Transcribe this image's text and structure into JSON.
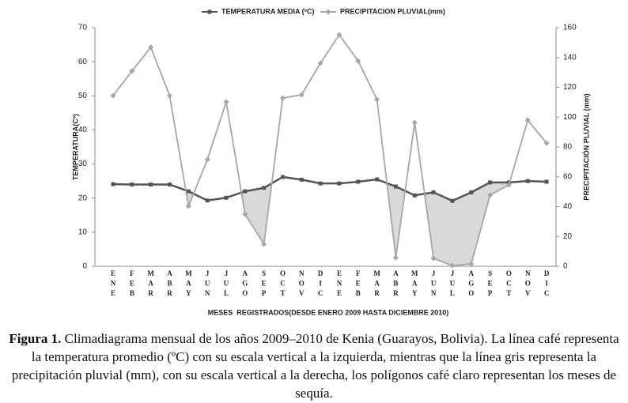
{
  "chart_data": {
    "type": "line",
    "categories": [
      "ENE",
      "FEB",
      "MAR",
      "ABR",
      "MAY",
      "JUN",
      "JUL",
      "AGO",
      "SEP",
      "OCT",
      "NOV",
      "DIC",
      "ENE",
      "FEB",
      "MAR",
      "ABR",
      "MAY",
      "JUN",
      "JUL",
      "AGO",
      "SEP",
      "OCT",
      "NOV",
      "DIC"
    ],
    "series": [
      {
        "name": "TEMPERATURA MEDIA (ºC)",
        "color": "#555555",
        "marker": "square",
        "values": [
          24.1,
          24,
          24,
          24,
          22,
          19.3,
          20.1,
          22,
          23,
          26.2,
          25.4,
          24.3,
          24.3,
          24.8,
          25.5,
          23.4,
          20.8,
          21.7,
          19.2,
          21.7,
          24.6,
          24.6,
          25,
          24.8
        ]
      },
      {
        "name": "PRECIPITACION PLUVIAL(mm)",
        "color": "#a6a6a6",
        "marker": "diamond",
        "axis": "y2",
        "values": [
          114.4,
          130.9,
          146.8,
          114.4,
          40.3,
          71.5,
          110.2,
          35,
          14.8,
          112.8,
          115,
          136.2,
          155.2,
          137.7,
          111.8,
          5.8,
          96.4,
          5.3,
          0.5,
          1.6,
          47.7,
          54.6,
          98,
          82.6
        ]
      }
    ],
    "ylim": [
      0,
      70
    ],
    "yticks": [
      0,
      10,
      20,
      30,
      40,
      50,
      60,
      70
    ],
    "y2lim": [
      0,
      160
    ],
    "y2ticks": [
      0,
      20,
      40,
      60,
      80,
      100,
      120,
      140,
      160
    ],
    "y_label": "TEMPERATURA(Cº)",
    "y2_label": "PRECIPITACIÓN PLUVIAL (mm)",
    "x_label": "MESES  REGISTRADOS(DESDE ENERO 2009 HASTA DICIEMBRE 2010)",
    "fill_color": "#d9d9d9",
    "legend": "top"
  },
  "caption": {
    "label": "Figura 1.",
    "text": "Climadiagrama mensual de los años 2009–2010 de Kenia (Guarayos, Bolivia). La línea café representa la temperatura promedio (ºC) con su escala vertical a la izquierda, mientras que la línea gris representa la precipitación pluvial (mm), con su escala vertical a la derecha, los polígonos café claro representan los meses de sequía."
  }
}
